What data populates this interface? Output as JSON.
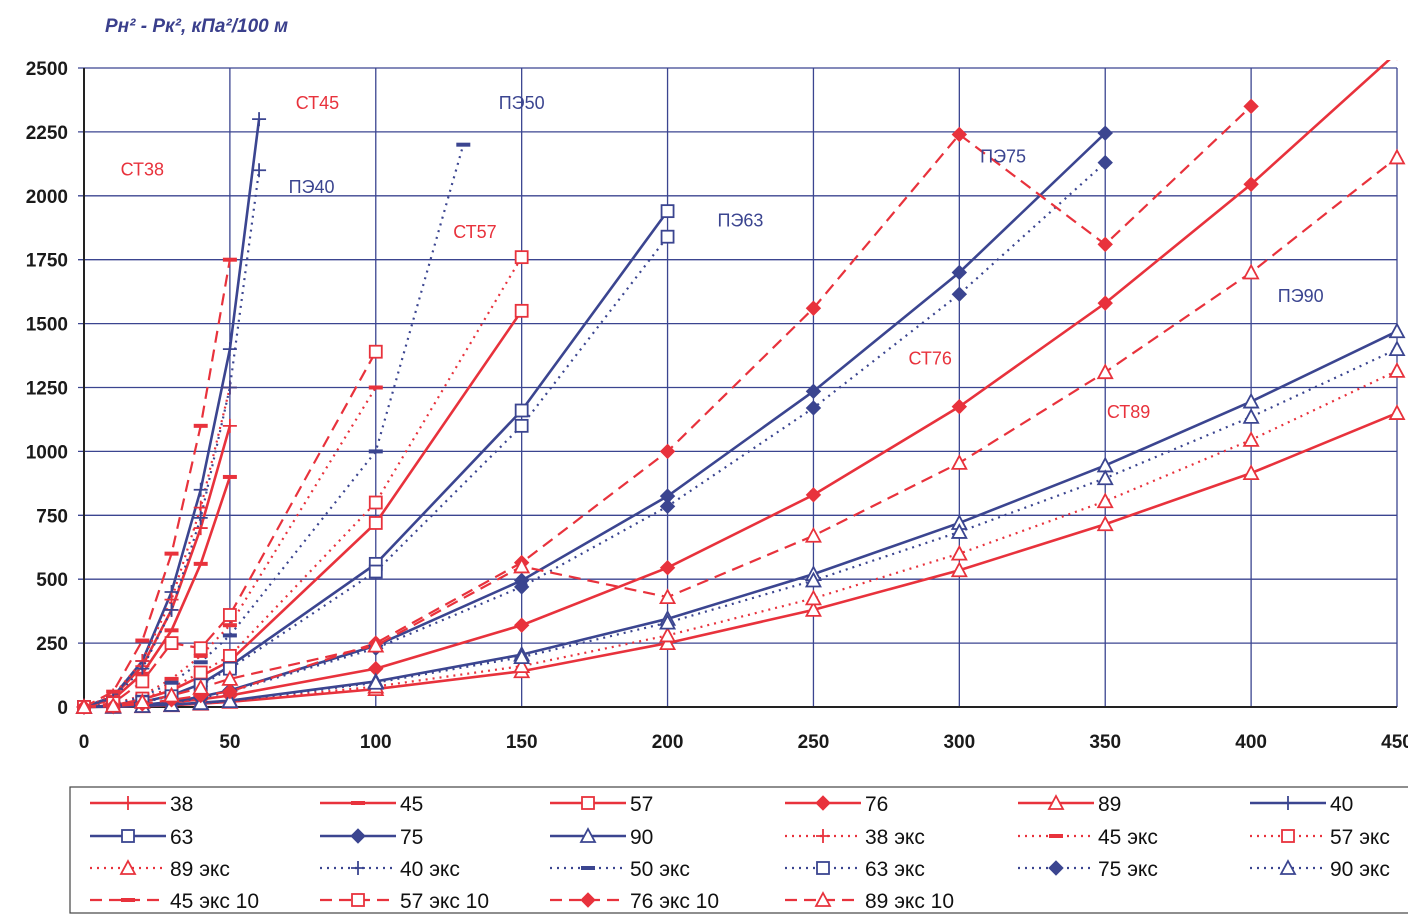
{
  "chart_data": {
    "type": "line",
    "ylabel": "Pн² - Pк², кПа²/100 м",
    "xlabel": "",
    "xlim": [
      0,
      450
    ],
    "ylim": [
      0,
      2500
    ],
    "grid": true,
    "legend_position": "bottom",
    "x_ticks": [
      "0",
      "50",
      "100",
      "150",
      "200",
      "250",
      "300",
      "350",
      "400",
      "450"
    ],
    "y_ticks": [
      "0",
      "250",
      "500",
      "750",
      "1000",
      "1250",
      "1500",
      "1750",
      "2000",
      "2250",
      "2500"
    ],
    "colors": {
      "red": "#e8323c",
      "blue": "#3b4590",
      "grid": "#3b4590"
    },
    "series": [
      {
        "name": "38",
        "color": "red",
        "style": "solid",
        "marker": "plus",
        "x": [
          0,
          10,
          20,
          30,
          40,
          50
        ],
        "y": [
          0,
          40,
          160,
          380,
          700,
          1100
        ]
      },
      {
        "name": "45",
        "color": "red",
        "style": "solid",
        "marker": "dash",
        "x": [
          0,
          10,
          20,
          30,
          40,
          50
        ],
        "y": [
          0,
          30,
          130,
          300,
          560,
          900
        ]
      },
      {
        "name": "57",
        "color": "red",
        "style": "solid",
        "marker": "square",
        "x": [
          0,
          10,
          20,
          30,
          40,
          50,
          100,
          150
        ],
        "y": [
          0,
          6,
          30,
          65,
          120,
          180,
          720,
          1550
        ]
      },
      {
        "name": "76",
        "color": "red",
        "style": "solid",
        "marker": "diamond",
        "x": [
          0,
          10,
          20,
          30,
          40,
          50,
          100,
          150,
          200,
          250,
          300,
          350,
          400,
          450
        ],
        "y": [
          0,
          2,
          8,
          18,
          30,
          45,
          150,
          320,
          545,
          830,
          1175,
          1580,
          2045,
          2560
        ]
      },
      {
        "name": "89",
        "color": "red",
        "style": "solid",
        "marker": "triangle",
        "x": [
          0,
          10,
          20,
          30,
          40,
          50,
          100,
          150,
          200,
          250,
          300,
          350,
          400,
          450
        ],
        "y": [
          0,
          1,
          3,
          7,
          13,
          20,
          70,
          140,
          250,
          380,
          535,
          715,
          915,
          1150
        ]
      },
      {
        "name": "40",
        "color": "blue",
        "style": "solid",
        "marker": "plus",
        "x": [
          0,
          10,
          20,
          30,
          40,
          50,
          60
        ],
        "y": [
          0,
          40,
          180,
          450,
          850,
          1400,
          2300
        ]
      },
      {
        "name": "63",
        "color": "blue",
        "style": "solid",
        "marker": "square",
        "x": [
          0,
          10,
          20,
          30,
          40,
          50,
          100,
          150,
          200
        ],
        "y": [
          0,
          4,
          20,
          45,
          90,
          160,
          560,
          1160,
          1940
        ]
      },
      {
        "name": "75",
        "color": "blue",
        "style": "solid",
        "marker": "diamond",
        "x": [
          0,
          10,
          20,
          30,
          40,
          50,
          100,
          150,
          200,
          250,
          300,
          350
        ],
        "y": [
          0,
          2,
          8,
          20,
          40,
          65,
          240,
          495,
          825,
          1235,
          1700,
          2245
        ]
      },
      {
        "name": "90",
        "color": "blue",
        "style": "solid",
        "marker": "triangle",
        "x": [
          0,
          10,
          20,
          30,
          40,
          50,
          100,
          150,
          200,
          250,
          300,
          350,
          400,
          450
        ],
        "y": [
          0,
          1,
          4,
          9,
          17,
          25,
          100,
          205,
          345,
          520,
          720,
          945,
          1195,
          1470
        ]
      },
      {
        "name": "38 экс",
        "color": "red",
        "style": "dotted",
        "marker": "plus",
        "x": [
          0,
          10,
          20,
          30,
          40,
          50
        ],
        "y": [
          0,
          45,
          180,
          420,
          780,
          1250
        ]
      },
      {
        "name": "45 экс",
        "color": "red",
        "style": "dotted",
        "marker": "dash",
        "x": [
          0,
          10,
          20,
          30,
          40,
          50,
          100
        ],
        "y": [
          0,
          12,
          45,
          110,
          200,
          320,
          1250
        ]
      },
      {
        "name": "57 экс",
        "color": "red",
        "style": "dotted",
        "marker": "square",
        "x": [
          0,
          10,
          20,
          30,
          40,
          50,
          100,
          150
        ],
        "y": [
          0,
          7,
          33,
          75,
          135,
          200,
          800,
          1760
        ]
      },
      {
        "name": "89 экс",
        "color": "red",
        "style": "dotted",
        "marker": "triangle",
        "x": [
          0,
          10,
          20,
          30,
          40,
          50,
          100,
          150,
          200,
          250,
          300,
          350,
          400,
          450
        ],
        "y": [
          0,
          1,
          4,
          9,
          15,
          23,
          80,
          160,
          280,
          425,
          600,
          805,
          1045,
          1315
        ]
      },
      {
        "name": "40 экс",
        "color": "blue",
        "style": "dotted",
        "marker": "plus",
        "x": [
          0,
          10,
          20,
          30,
          40,
          50,
          60
        ],
        "y": [
          0,
          35,
          150,
          380,
          740,
          1250,
          2100
        ]
      },
      {
        "name": "50 экс",
        "color": "blue",
        "style": "dotted",
        "marker": "dash",
        "x": [
          0,
          10,
          20,
          30,
          40,
          50,
          100,
          130
        ],
        "y": [
          0,
          10,
          40,
          95,
          175,
          280,
          1000,
          2200
        ]
      },
      {
        "name": "63 экс",
        "color": "blue",
        "style": "dotted",
        "marker": "square",
        "x": [
          0,
          10,
          20,
          30,
          40,
          50,
          100,
          150,
          200
        ],
        "y": [
          0,
          4,
          18,
          42,
          85,
          150,
          530,
          1100,
          1840
        ]
      },
      {
        "name": "75 экс",
        "color": "blue",
        "style": "dotted",
        "marker": "diamond",
        "x": [
          0,
          10,
          20,
          30,
          40,
          50,
          100,
          150,
          200,
          250,
          300,
          350
        ],
        "y": [
          0,
          2,
          8,
          18,
          35,
          60,
          230,
          470,
          785,
          1170,
          1615,
          2130
        ]
      },
      {
        "name": "90 экс",
        "color": "blue",
        "style": "dotted",
        "marker": "triangle",
        "x": [
          0,
          10,
          20,
          30,
          40,
          50,
          100,
          150,
          200,
          250,
          300,
          350,
          400,
          450
        ],
        "y": [
          0,
          1,
          4,
          8,
          15,
          23,
          95,
          195,
          330,
          495,
          685,
          895,
          1135,
          1400
        ]
      },
      {
        "name": "45 экс 10",
        "color": "red",
        "style": "dashed",
        "marker": "dash",
        "x": [
          0,
          10,
          20,
          30,
          40,
          50
        ],
        "y": [
          0,
          60,
          260,
          600,
          1100,
          1750
        ]
      },
      {
        "name": "57 экс 10",
        "color": "red",
        "style": "dashed",
        "marker": "square",
        "x": [
          0,
          10,
          20,
          30,
          40,
          50,
          100
        ],
        "y": [
          0,
          15,
          100,
          250,
          230,
          360,
          1390
        ]
      },
      {
        "name": "76 экс 10",
        "color": "red",
        "style": "dashed",
        "marker": "diamond",
        "x": [
          0,
          10,
          20,
          30,
          40,
          50,
          100,
          150,
          200,
          250,
          300,
          350,
          400
        ],
        "y": [
          0,
          3,
          12,
          28,
          45,
          60,
          250,
          565,
          1000,
          1560,
          2240,
          1810,
          2350
        ]
      },
      {
        "name": "89 экс 10",
        "color": "red",
        "style": "dashed",
        "marker": "triangle",
        "x": [
          0,
          10,
          20,
          30,
          40,
          50,
          100,
          150,
          200,
          250,
          300,
          350,
          400,
          450
        ],
        "y": [
          0,
          5,
          20,
          45,
          75,
          110,
          240,
          550,
          430,
          670,
          955,
          1310,
          1700,
          2150
        ]
      }
    ],
    "annotations": [
      {
        "text": "СТ38",
        "color": "red",
        "x": 20,
        "y": 2080
      },
      {
        "text": "СТ45",
        "color": "red",
        "x": 80,
        "y": 2340
      },
      {
        "text": "ПЭ40",
        "color": "blue",
        "x": 78,
        "y": 2010
      },
      {
        "text": "ПЭ50",
        "color": "blue",
        "x": 150,
        "y": 2340
      },
      {
        "text": "СТ57",
        "color": "red",
        "x": 134,
        "y": 1835
      },
      {
        "text": "ПЭ63",
        "color": "blue",
        "x": 225,
        "y": 1880
      },
      {
        "text": "ПЭ75",
        "color": "blue",
        "x": 315,
        "y": 2130
      },
      {
        "text": "СТ76",
        "color": "red",
        "x": 290,
        "y": 1340
      },
      {
        "text": "СТ89",
        "color": "red",
        "x": 358,
        "y": 1130
      },
      {
        "text": "ПЭ90",
        "color": "blue",
        "x": 417,
        "y": 1585
      }
    ]
  }
}
